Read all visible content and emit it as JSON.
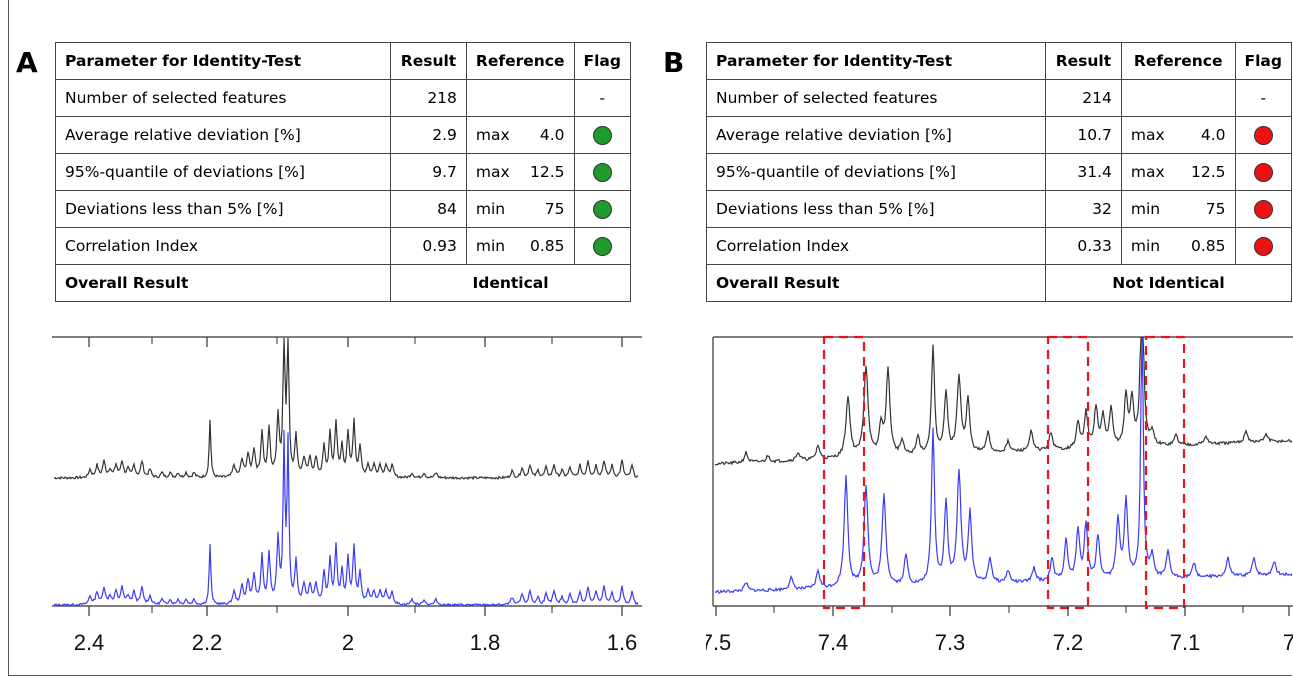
{
  "panel_a": {
    "letter": "A",
    "table": {
      "headers": {
        "parameter": "Parameter for Identity-Test",
        "result": "Result",
        "reference": "Reference",
        "flag": "Flag"
      },
      "rows": [
        {
          "parameter": "Number of selected features",
          "result": "218",
          "ref_kind": "",
          "ref_value": "",
          "flag": "-",
          "flag_color": ""
        },
        {
          "parameter": "Average relative deviation [%]",
          "result": "2.9",
          "ref_kind": "max",
          "ref_value": "4.0",
          "flag": "",
          "flag_color": "#1e9a2e"
        },
        {
          "parameter": "95%-quantile of deviations [%]",
          "result": "9.7",
          "ref_kind": "max",
          "ref_value": "12.5",
          "flag": "",
          "flag_color": "#1e9a2e"
        },
        {
          "parameter": "Deviations less than 5% [%]",
          "result": "84",
          "ref_kind": "min",
          "ref_value": "75",
          "flag": "",
          "flag_color": "#1e9a2e"
        },
        {
          "parameter": "Correlation Index",
          "result": "0.93",
          "ref_kind": "min",
          "ref_value": "0.85",
          "flag": "",
          "flag_color": "#1e9a2e"
        }
      ],
      "overall_label": "Overall Result",
      "overall_value": "Identical"
    },
    "spectrum": {
      "x_ticks": [
        "2.4",
        "2.2",
        "2",
        "1.8",
        "1.6"
      ],
      "sample_color": "#333333",
      "reference_color": "#3b3bf5"
    }
  },
  "panel_b": {
    "letter": "B",
    "table": {
      "headers": {
        "parameter": "Parameter for Identity-Test",
        "result": "Result",
        "reference": "Reference",
        "flag": "Flag"
      },
      "rows": [
        {
          "parameter": "Number of selected features",
          "result": "214",
          "ref_kind": "",
          "ref_value": "",
          "flag": "-",
          "flag_color": ""
        },
        {
          "parameter": "Average relative deviation [%]",
          "result": "10.7",
          "ref_kind": "max",
          "ref_value": "4.0",
          "flag": "",
          "flag_color": "#ee1111"
        },
        {
          "parameter": "95%-quantile of deviations [%]",
          "result": "31.4",
          "ref_kind": "max",
          "ref_value": "12.5",
          "flag": "",
          "flag_color": "#ee1111"
        },
        {
          "parameter": "Deviations less than 5% [%]",
          "result": "32",
          "ref_kind": "min",
          "ref_value": "75",
          "flag": "",
          "flag_color": "#ee1111"
        },
        {
          "parameter": "Correlation Index",
          "result": "0.33",
          "ref_kind": "min",
          "ref_value": "0.85",
          "flag": "",
          "flag_color": "#ee1111"
        }
      ],
      "overall_label": "Overall Result",
      "overall_value": "Not Identical"
    },
    "spectrum": {
      "x_ticks": [
        "7.5",
        "7.4",
        "7.3",
        "7.2",
        "7.1",
        "7"
      ],
      "sample_color": "#333333",
      "reference_color": "#3b3bf5",
      "highlight_color": "#e8141a"
    }
  }
}
